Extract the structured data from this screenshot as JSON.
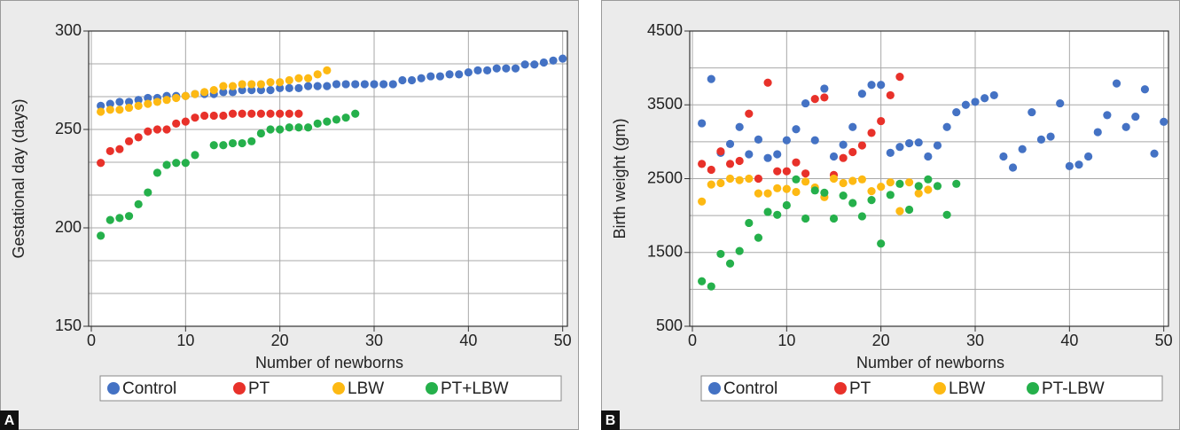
{
  "chart_data": [
    {
      "type": "scatter",
      "panel_label": "A",
      "x_label": "Number of newborns",
      "y_label": "Gestational day (days)",
      "xlim": [
        0,
        50.5
      ],
      "ylim": [
        150,
        300
      ],
      "xticks": [
        0,
        10,
        20,
        30,
        40,
        50
      ],
      "yticks": [
        150,
        200,
        250,
        300
      ],
      "grid": true,
      "grid_minor_divisions": 3,
      "legend": "bottom",
      "series": [
        {
          "name": "Control",
          "color": "#4472c4",
          "x": [
            1,
            2,
            3,
            4,
            5,
            6,
            7,
            8,
            9,
            10,
            11,
            12,
            13,
            14,
            15,
            16,
            17,
            18,
            19,
            20,
            21,
            22,
            23,
            24,
            25,
            26,
            27,
            28,
            29,
            30,
            31,
            32,
            33,
            34,
            35,
            36,
            37,
            38,
            39,
            40,
            41,
            42,
            43,
            44,
            45,
            46,
            47,
            48,
            49,
            50
          ],
          "values": [
            262,
            263,
            264,
            264,
            265,
            266,
            266,
            267,
            267,
            267,
            268,
            268,
            268,
            269,
            269,
            270,
            270,
            270,
            270,
            271,
            271,
            271,
            272,
            272,
            272,
            273,
            273,
            273,
            273,
            273,
            273,
            273,
            275,
            275,
            276,
            277,
            277,
            278,
            278,
            279,
            280,
            280,
            281,
            281,
            281,
            283,
            283,
            284,
            285,
            286
          ]
        },
        {
          "name": "PT",
          "color": "#e8312a",
          "x": [
            1,
            2,
            3,
            4,
            5,
            6,
            7,
            8,
            9,
            10,
            11,
            12,
            13,
            14,
            15,
            16,
            17,
            18,
            19,
            20,
            21,
            22
          ],
          "values": [
            233,
            239,
            240,
            244,
            246,
            249,
            250,
            250,
            253,
            254,
            256,
            257,
            257,
            257,
            258,
            258,
            258,
            258,
            258,
            258,
            258,
            258
          ]
        },
        {
          "name": "LBW",
          "color": "#fdb913",
          "x": [
            1,
            2,
            3,
            4,
            5,
            6,
            7,
            8,
            9,
            10,
            11,
            12,
            13,
            14,
            15,
            16,
            17,
            18,
            19,
            20,
            21,
            22,
            23,
            24,
            25
          ],
          "values": [
            259,
            260,
            260,
            261,
            262,
            263,
            264,
            265,
            266,
            267,
            268,
            269,
            270,
            272,
            272,
            273,
            273,
            273,
            274,
            274,
            275,
            276,
            276,
            278,
            280
          ]
        },
        {
          "name": "PT+LBW",
          "color": "#25b04b",
          "x": [
            1,
            2,
            3,
            4,
            5,
            6,
            7,
            8,
            9,
            10,
            11,
            13,
            14,
            15,
            16,
            17,
            18,
            19,
            20,
            21,
            22,
            23,
            24,
            25,
            26,
            27,
            28
          ],
          "values": [
            196,
            204,
            205,
            206,
            212,
            218,
            228,
            232,
            233,
            233,
            237,
            242,
            242,
            243,
            243,
            244,
            248,
            250,
            250,
            251,
            251,
            251,
            253,
            254,
            255,
            256,
            258
          ]
        }
      ]
    },
    {
      "type": "scatter",
      "panel_label": "B",
      "x_label": "Number of newborns",
      "y_label": "Birth weight (gm)",
      "xlim": [
        0,
        50.5
      ],
      "ylim": [
        500,
        4500
      ],
      "xticks": [
        0,
        10,
        20,
        30,
        40,
        50
      ],
      "yticks": [
        500,
        1500,
        2500,
        3500,
        4500
      ],
      "grid": true,
      "grid_minor_divisions": 2,
      "legend": "bottom",
      "series": [
        {
          "name": "Control",
          "color": "#4472c4",
          "x": [
            1,
            2,
            3,
            4,
            5,
            6,
            7,
            8,
            9,
            10,
            11,
            12,
            13,
            14,
            15,
            16,
            17,
            18,
            19,
            20,
            21,
            22,
            23,
            24,
            25,
            26,
            27,
            28,
            29,
            30,
            31,
            32,
            33,
            34,
            35,
            36,
            37,
            38,
            39,
            40,
            41,
            42,
            43,
            44,
            45,
            46,
            47,
            48,
            49,
            50
          ],
          "values": [
            3250,
            3850,
            2850,
            2970,
            3200,
            2830,
            3030,
            2780,
            2830,
            3020,
            3170,
            3520,
            3020,
            3720,
            2800,
            2960,
            3200,
            3650,
            3770,
            3770,
            2850,
            2930,
            2980,
            2990,
            2800,
            2950,
            3200,
            3400,
            3500,
            3540,
            3590,
            3630,
            2800,
            2650,
            2900,
            3400,
            3030,
            3070,
            3520,
            2670,
            2690,
            2800,
            3130,
            3360,
            3790,
            3200,
            3340,
            3710,
            2840,
            3270
          ]
        },
        {
          "name": "PT",
          "color": "#e8312a",
          "x": [
            1,
            2,
            3,
            4,
            5,
            6,
            7,
            8,
            9,
            10,
            11,
            12,
            13,
            14,
            15,
            16,
            17,
            18,
            19,
            20,
            21,
            22
          ],
          "values": [
            2700,
            2620,
            2870,
            2700,
            2740,
            3380,
            2500,
            3800,
            2600,
            2600,
            2720,
            2570,
            3580,
            3600,
            2550,
            2780,
            2860,
            2950,
            3120,
            3280,
            3630,
            3880
          ]
        },
        {
          "name": "LBW",
          "color": "#fdb913",
          "x": [
            1,
            2,
            3,
            4,
            5,
            6,
            7,
            8,
            9,
            10,
            11,
            12,
            13,
            14,
            15,
            16,
            17,
            18,
            19,
            20,
            21,
            22,
            23,
            24,
            25
          ],
          "values": [
            2190,
            2420,
            2440,
            2500,
            2480,
            2500,
            2300,
            2300,
            2370,
            2360,
            2320,
            2460,
            2380,
            2250,
            2500,
            2440,
            2470,
            2490,
            2330,
            2390,
            2450,
            2060,
            2450,
            2300,
            2350
          ]
        },
        {
          "name": "PT-LBW",
          "color": "#25b04b",
          "x": [
            1,
            2,
            3,
            4,
            5,
            6,
            7,
            8,
            9,
            10,
            11,
            12,
            13,
            14,
            15,
            16,
            17,
            18,
            19,
            20,
            21,
            22,
            23,
            24,
            25,
            26,
            27,
            28
          ],
          "values": [
            1110,
            1040,
            1480,
            1350,
            1520,
            1900,
            1700,
            2050,
            2010,
            2140,
            2490,
            1960,
            2340,
            2310,
            1960,
            2270,
            2170,
            1990,
            2210,
            1620,
            2280,
            2430,
            2080,
            2400,
            2490,
            2400,
            2010,
            2430
          ]
        }
      ]
    }
  ]
}
